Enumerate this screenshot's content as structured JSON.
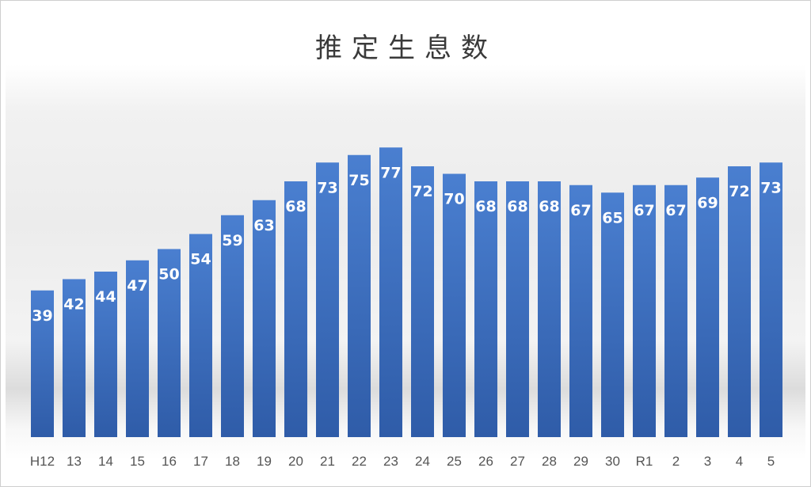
{
  "chart_data": {
    "type": "bar",
    "title": "推定生息数",
    "categories": [
      "H12",
      "13",
      "14",
      "15",
      "16",
      "17",
      "18",
      "19",
      "20",
      "21",
      "22",
      "23",
      "24",
      "25",
      "26",
      "27",
      "28",
      "29",
      "30",
      "R1",
      "2",
      "3",
      "4",
      "5"
    ],
    "values": [
      39,
      42,
      44,
      47,
      50,
      54,
      59,
      63,
      68,
      73,
      75,
      77,
      72,
      70,
      68,
      68,
      68,
      67,
      65,
      67,
      67,
      69,
      72,
      73
    ],
    "xlabel": "",
    "ylabel": "",
    "ylim": [
      0,
      78
    ],
    "grid": false,
    "legend": "none",
    "data_labels": true,
    "colors": {
      "bar_top": "#4A7FD0",
      "bar_bottom": "#2F5CA8",
      "label": "#FFFFFF"
    }
  }
}
